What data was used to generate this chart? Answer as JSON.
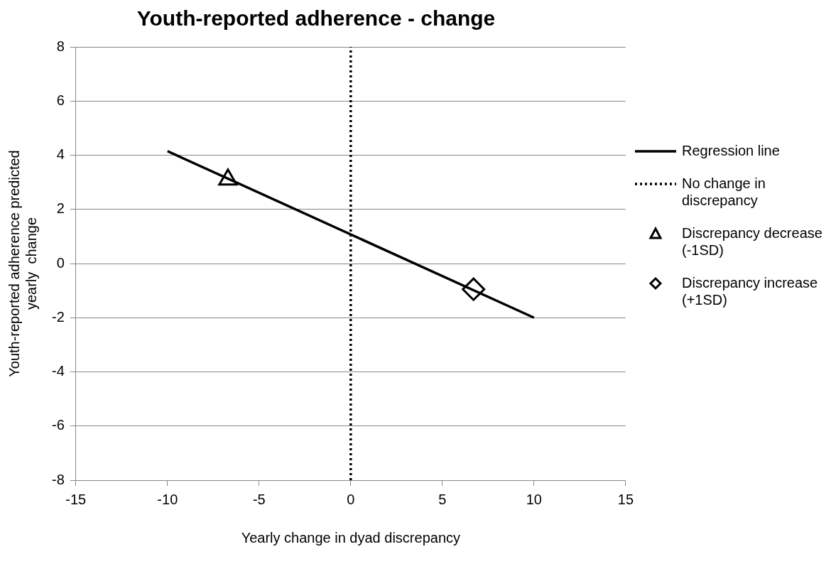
{
  "chart_data": {
    "type": "line",
    "title": "Youth-reported adherence - change",
    "xlabel": "Yearly change in dyad discrepancy",
    "ylabel": "Youth-reported adherence predicted yearly  change",
    "xlim": [
      -15,
      15
    ],
    "xticks": [
      -15,
      -10,
      -5,
      0,
      5,
      10,
      15
    ],
    "ylim": [
      -8,
      8
    ],
    "yticks": [
      -8,
      -6,
      -4,
      -2,
      0,
      2,
      4,
      6,
      8
    ],
    "grid": "y",
    "legend": "right",
    "series": [
      {
        "name": "Regression line",
        "type": "line",
        "color": "#000000",
        "x": [
          -10,
          10
        ],
        "values": [
          4.15,
          -2.0
        ],
        "marker": "none",
        "line_style": "solid"
      },
      {
        "name": "No change in discrepancy",
        "type": "line",
        "color": "#000000",
        "x": [
          0,
          0
        ],
        "values": [
          -8,
          8
        ],
        "marker": "none",
        "line_style": "dotted"
      },
      {
        "name": "Discrepancy decrease (-1SD)",
        "type": "scatter",
        "color": "#000000",
        "x": [
          -6.7
        ],
        "values": [
          3.1
        ],
        "marker": "triangle"
      },
      {
        "name": "Discrepancy increase (+1SD)",
        "type": "scatter",
        "color": "#000000",
        "x": [
          6.7
        ],
        "values": [
          -0.95
        ],
        "marker": "diamond"
      }
    ]
  }
}
